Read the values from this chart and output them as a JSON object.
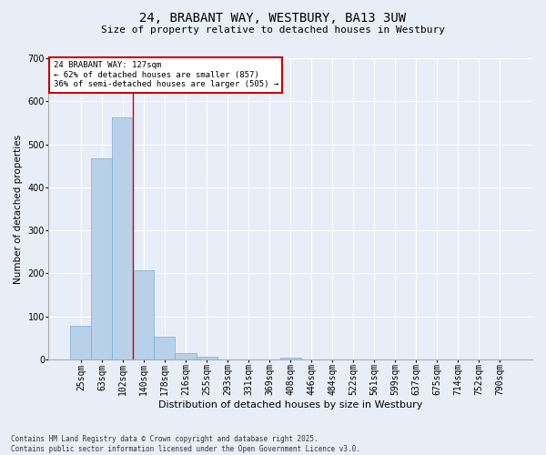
{
  "title_line1": "24, BRABANT WAY, WESTBURY, BA13 3UW",
  "title_line2": "Size of property relative to detached houses in Westbury",
  "xlabel": "Distribution of detached houses by size in Westbury",
  "ylabel": "Number of detached properties",
  "categories": [
    "25sqm",
    "63sqm",
    "102sqm",
    "140sqm",
    "178sqm",
    "216sqm",
    "255sqm",
    "293sqm",
    "331sqm",
    "369sqm",
    "408sqm",
    "446sqm",
    "484sqm",
    "522sqm",
    "561sqm",
    "599sqm",
    "637sqm",
    "675sqm",
    "714sqm",
    "752sqm",
    "790sqm"
  ],
  "values": [
    78,
    467,
    563,
    208,
    53,
    14,
    7,
    0,
    0,
    0,
    5,
    0,
    0,
    0,
    0,
    0,
    0,
    0,
    0,
    0,
    0
  ],
  "bar_color": "#b8d0e8",
  "bar_edge_color": "#7aafd4",
  "annotation_text_line1": "24 BRABANT WAY: 127sqm",
  "annotation_text_line2": "← 62% of detached houses are smaller (857)",
  "annotation_text_line3": "36% of semi-detached houses are larger (505) →",
  "vline_x_index": 2.5,
  "ylim": [
    0,
    700
  ],
  "yticks": [
    0,
    100,
    200,
    300,
    400,
    500,
    600,
    700
  ],
  "footer_line1": "Contains HM Land Registry data © Crown copyright and database right 2025.",
  "footer_line2": "Contains public sector information licensed under the Open Government Licence v3.0.",
  "background_color": "#e8eef8",
  "plot_bg_color": "#e8eef8",
  "grid_color": "#ffffff",
  "annotation_box_color": "#ffffff",
  "annotation_box_edge": "#cc0000",
  "vline_color": "#cc0000",
  "title_fontsize": 10,
  "subtitle_fontsize": 8,
  "ylabel_fontsize": 7.5,
  "xlabel_fontsize": 8,
  "tick_fontsize": 7,
  "annotation_fontsize": 6.5,
  "footer_fontsize": 5.5
}
